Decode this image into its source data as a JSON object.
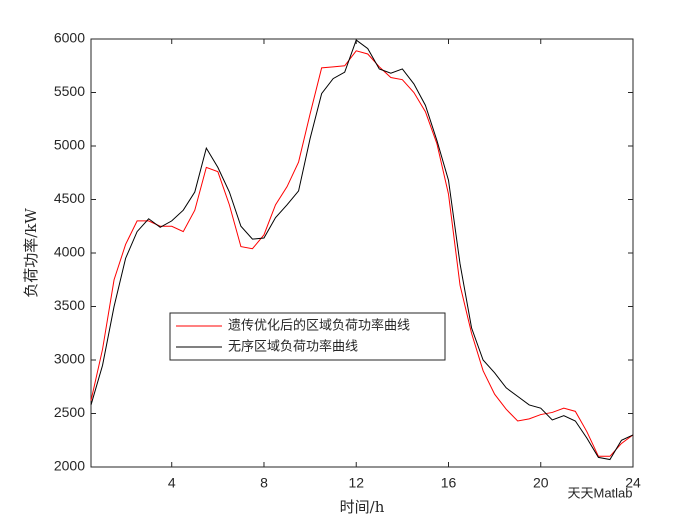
{
  "chart_data": {
    "type": "line",
    "xlabel": "时间/h",
    "ylabel": "负荷功率/kW",
    "x": [
      0.5,
      1,
      1.5,
      2,
      2.5,
      3,
      3.5,
      4,
      4.5,
      5,
      5.5,
      6,
      6.5,
      7,
      7.5,
      8,
      8.5,
      9,
      9.5,
      10,
      10.5,
      11,
      11.5,
      12,
      12.5,
      13,
      13.5,
      14,
      14.5,
      15,
      15.5,
      16,
      16.5,
      17,
      17.5,
      18,
      18.5,
      19,
      19.5,
      20,
      20.5,
      21,
      21.5,
      22,
      22.5,
      23,
      23.5,
      24
    ],
    "series": [
      {
        "name": "遗传优化后的区域负荷功率曲线",
        "color": "#ff0000",
        "values": [
          2620,
          3100,
          3750,
          4080,
          4300,
          4300,
          4250,
          4250,
          4200,
          4400,
          4800,
          4760,
          4450,
          4060,
          4040,
          4170,
          4450,
          4620,
          4850,
          5300,
          5730,
          5740,
          5750,
          5890,
          5860,
          5740,
          5640,
          5620,
          5500,
          5320,
          5020,
          4550,
          3700,
          3250,
          2900,
          2680,
          2540,
          2430,
          2450,
          2490,
          2510,
          2550,
          2520,
          2330,
          2100,
          2100,
          2220,
          2300
        ]
      },
      {
        "name": "无序区域负荷功率曲线",
        "color": "#000000",
        "values": [
          2580,
          2950,
          3500,
          3950,
          4200,
          4320,
          4240,
          4300,
          4400,
          4570,
          4980,
          4800,
          4570,
          4250,
          4130,
          4140,
          4330,
          4450,
          4580,
          5070,
          5490,
          5630,
          5690,
          5990,
          5910,
          5720,
          5680,
          5720,
          5580,
          5380,
          5050,
          4680,
          3900,
          3300,
          3000,
          2880,
          2740,
          2660,
          2580,
          2550,
          2440,
          2480,
          2430,
          2270,
          2090,
          2070,
          2250,
          2300
        ]
      }
    ],
    "xlim": [
      0.5,
      24
    ],
    "ylim": [
      2000,
      6000
    ],
    "xticks": [
      4,
      8,
      12,
      16,
      20,
      24
    ],
    "yticks": [
      2000,
      2500,
      3000,
      3500,
      4000,
      4500,
      5000,
      5500,
      6000
    ],
    "watermark": "天天Matlab"
  }
}
